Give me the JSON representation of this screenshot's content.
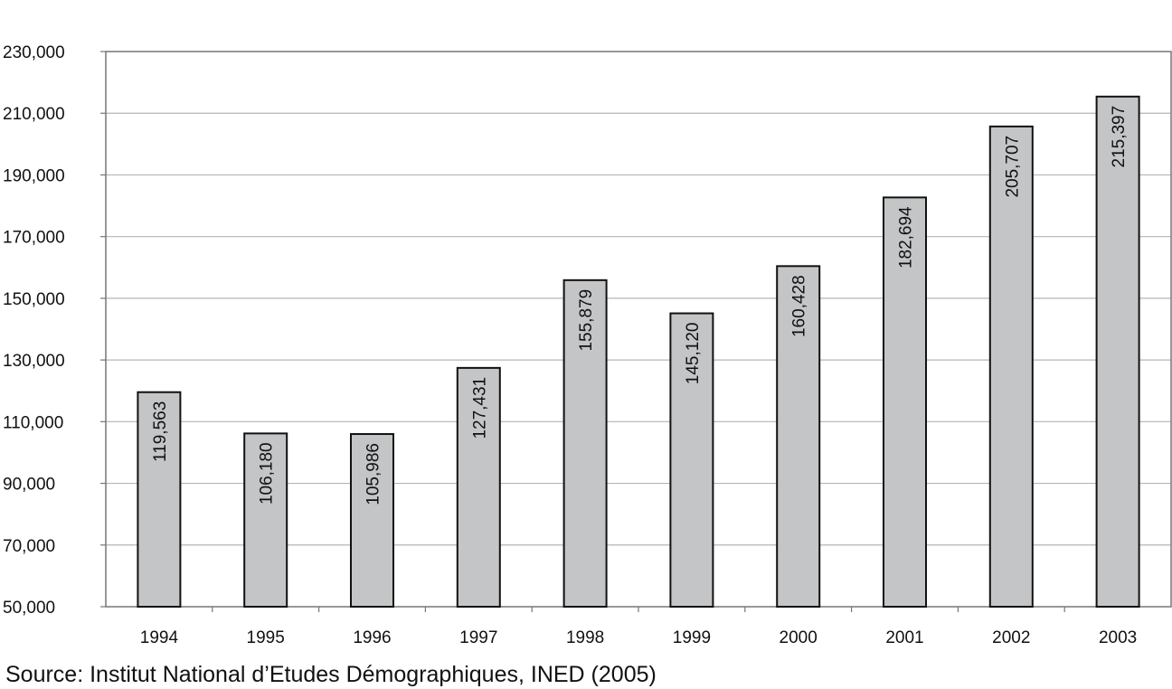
{
  "chart_data": {
    "type": "bar",
    "categories": [
      "1994",
      "1995",
      "1996",
      "1997",
      "1998",
      "1999",
      "2000",
      "2001",
      "2002",
      "2003"
    ],
    "values": [
      119563,
      106180,
      105986,
      127431,
      155879,
      145120,
      160428,
      182694,
      205707,
      215397
    ],
    "value_labels": [
      "119,563",
      "106,180",
      "105,986",
      "127,431",
      "155,879",
      "145,120",
      "160,428",
      "182,694",
      "205,707",
      "215,397"
    ],
    "ylim": [
      50000,
      230000
    ],
    "yticks": [
      50000,
      70000,
      90000,
      110000,
      130000,
      150000,
      170000,
      190000,
      210000,
      230000
    ],
    "ytick_labels": [
      "50,000",
      "70,000",
      "90,000",
      "110,000",
      "130,000",
      "150,000",
      "170,000",
      "190,000",
      "210,000",
      "230,000"
    ],
    "grid": true,
    "bar_color": "#c3c5c6",
    "source": "Source: Institut National d’Etudes Démographiques, INED (2005)"
  }
}
